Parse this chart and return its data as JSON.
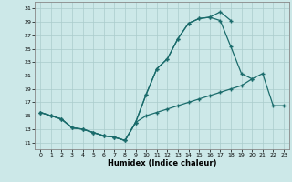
{
  "bg_color": "#cce8e8",
  "grid_color": "#aacccc",
  "line_color": "#1a6b6b",
  "xlabel": "Humidex (Indice chaleur)",
  "xlim": [
    -0.5,
    23.5
  ],
  "ylim": [
    10,
    32
  ],
  "yticks": [
    11,
    13,
    15,
    17,
    19,
    21,
    23,
    25,
    27,
    29,
    31
  ],
  "xticks": [
    0,
    1,
    2,
    3,
    4,
    5,
    6,
    7,
    8,
    9,
    10,
    11,
    12,
    13,
    14,
    15,
    16,
    17,
    18,
    19,
    20,
    21,
    22,
    23
  ],
  "line1_x": [
    0,
    1,
    2,
    3,
    4,
    5,
    6,
    7,
    8,
    9,
    10,
    11,
    12,
    13,
    14,
    15,
    16,
    17,
    18
  ],
  "line1_y": [
    15.5,
    15.0,
    14.5,
    13.2,
    13.0,
    12.5,
    12.0,
    11.8,
    11.3,
    14.0,
    18.2,
    22.0,
    23.5,
    26.5,
    28.8,
    29.5,
    29.7,
    30.5,
    29.2
  ],
  "line2_x": [
    0,
    1,
    2,
    3,
    4,
    5,
    6,
    7,
    8,
    9,
    10,
    11,
    12,
    13,
    14,
    15,
    16,
    17,
    18,
    19,
    20
  ],
  "line2_y": [
    15.5,
    15.0,
    14.5,
    13.2,
    13.0,
    12.5,
    12.0,
    11.8,
    11.3,
    14.0,
    18.2,
    22.0,
    23.5,
    26.5,
    28.8,
    29.5,
    29.7,
    29.2,
    25.3,
    21.3,
    20.5
  ],
  "line3_x": [
    0,
    1,
    2,
    3,
    4,
    5,
    6,
    7,
    8,
    9,
    10,
    11,
    12,
    13,
    14,
    15,
    16,
    17,
    18,
    19,
    20,
    21,
    22,
    23
  ],
  "line3_y": [
    15.5,
    15.0,
    14.5,
    13.2,
    13.0,
    12.5,
    12.0,
    11.8,
    11.3,
    14.0,
    15.0,
    15.5,
    16.0,
    16.5,
    17.0,
    17.5,
    18.0,
    18.5,
    19.0,
    19.5,
    20.5,
    21.3,
    16.5,
    16.5
  ]
}
